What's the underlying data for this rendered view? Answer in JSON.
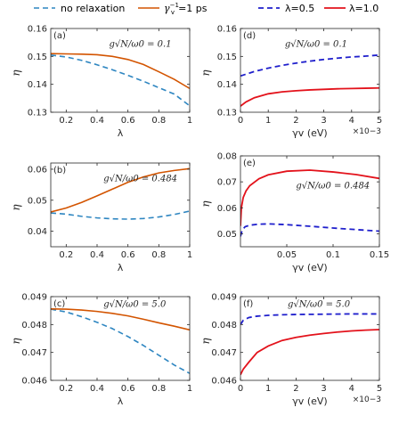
{
  "legends": {
    "left": [
      {
        "label": "no relaxation",
        "color": "#2e86c1",
        "dash": true
      },
      {
        "label": "γv−1=1 ps",
        "color": "#d35400",
        "dash": false
      }
    ],
    "right": [
      {
        "label": "λ=0.5",
        "color": "#1f1fcc",
        "dash": true
      },
      {
        "label": "λ=1.0",
        "color": "#e3121b",
        "dash": false
      }
    ]
  },
  "chart_data": [
    {
      "id": "a",
      "panel_label": "(a)",
      "type": "line",
      "annotation": "g√N/ω0 = 0.1",
      "xlabel": "λ",
      "ylabel": "η",
      "xlim": [
        0.1,
        1.0
      ],
      "ylim": [
        0.13,
        0.16
      ],
      "xticks": [
        0.2,
        0.4,
        0.6,
        0.8,
        1.0
      ],
      "xtick_labels": [
        "0.2",
        "0.4",
        "0.6",
        "0.8",
        "1"
      ],
      "yticks": [
        0.13,
        0.14,
        0.15,
        0.16
      ],
      "ytick_labels": [
        "0.13",
        "0.14",
        "0.15",
        "0.16"
      ],
      "series": [
        {
          "name": "no relaxation",
          "x": [
            0.1,
            0.2,
            0.3,
            0.4,
            0.5,
            0.6,
            0.7,
            0.8,
            0.9,
            1.0
          ],
          "y": [
            0.1505,
            0.1498,
            0.1486,
            0.147,
            0.1452,
            0.1432,
            0.1411,
            0.1388,
            0.1365,
            0.1323
          ]
        },
        {
          "name": "γv−1=1 ps",
          "x": [
            0.1,
            0.2,
            0.3,
            0.4,
            0.5,
            0.6,
            0.7,
            0.8,
            0.9,
            1.0
          ],
          "y": [
            0.151,
            0.1509,
            0.1508,
            0.1506,
            0.15,
            0.1489,
            0.1471,
            0.1445,
            0.1418,
            0.1385
          ]
        }
      ]
    },
    {
      "id": "d",
      "panel_label": "(d)",
      "type": "line",
      "annotation": "g√N/ω0 = 0.1",
      "xlabel": "γv (eV)",
      "x_multiplier": "×10−3",
      "ylabel": "η",
      "xlim": [
        0,
        5
      ],
      "ylim": [
        0.13,
        0.16
      ],
      "xticks": [
        0,
        1,
        2,
        3,
        4,
        5
      ],
      "xtick_labels": [
        "0",
        "1",
        "2",
        "3",
        "4",
        "5"
      ],
      "yticks": [
        0.13,
        0.14,
        0.15,
        0.16
      ],
      "ytick_labels": [
        "0.13",
        "0.14",
        "0.15",
        "0.16"
      ],
      "series": [
        {
          "name": "λ=0.5",
          "x": [
            0,
            0.5,
            1,
            1.5,
            2,
            2.5,
            3,
            3.5,
            4,
            4.5,
            5
          ],
          "y": [
            0.143,
            0.1446,
            0.1458,
            0.1468,
            0.1476,
            0.1483,
            0.1489,
            0.1494,
            0.1498,
            0.1501,
            0.1505
          ]
        },
        {
          "name": "λ=1.0",
          "x": [
            0,
            0.2,
            0.5,
            1,
            1.5,
            2,
            2.5,
            3,
            3.5,
            4,
            4.5,
            5
          ],
          "y": [
            0.1322,
            0.1337,
            0.1352,
            0.1366,
            0.1373,
            0.1377,
            0.138,
            0.1382,
            0.1384,
            0.1385,
            0.1386,
            0.1387
          ]
        }
      ]
    },
    {
      "id": "b",
      "panel_label": "(b)",
      "type": "line",
      "annotation": "g√N/ω0 = 0.484",
      "xlabel": "λ",
      "ylabel": "η",
      "xlim": [
        0.1,
        1.0
      ],
      "ylim": [
        0.035,
        0.062
      ],
      "xticks": [
        0.2,
        0.4,
        0.6,
        0.8,
        1.0
      ],
      "xtick_labels": [
        "0.2",
        "0.4",
        "0.6",
        "0.8",
        "1"
      ],
      "yticks": [
        0.04,
        0.05,
        0.06
      ],
      "ytick_labels": [
        "0.04",
        "0.05",
        "0.06"
      ],
      "series": [
        {
          "name": "no relaxation",
          "x": [
            0.1,
            0.2,
            0.3,
            0.4,
            0.5,
            0.6,
            0.7,
            0.8,
            0.9,
            1.0
          ],
          "y": [
            0.0459,
            0.0455,
            0.0448,
            0.0443,
            0.044,
            0.0439,
            0.0441,
            0.0446,
            0.0454,
            0.0465
          ]
        },
        {
          "name": "γv−1=1 ps",
          "x": [
            0.1,
            0.2,
            0.3,
            0.4,
            0.5,
            0.6,
            0.7,
            0.8,
            0.9,
            1.0
          ],
          "y": [
            0.0462,
            0.0475,
            0.0493,
            0.0514,
            0.0536,
            0.0558,
            0.0575,
            0.0588,
            0.0596,
            0.0602
          ]
        }
      ]
    },
    {
      "id": "e",
      "panel_label": "(e)",
      "type": "line",
      "annotation": "g√N/ω0 = 0.484",
      "xlabel": "γv (eV)",
      "ylabel": "η",
      "xlim": [
        0,
        0.15
      ],
      "ylim": [
        0.045,
        0.08
      ],
      "xticks": [
        0.05,
        0.1,
        0.15
      ],
      "xtick_labels": [
        "0.05",
        "0.1",
        "0.15"
      ],
      "yticks": [
        0.05,
        0.06,
        0.07,
        0.08
      ],
      "ytick_labels": [
        "0.05",
        "0.06",
        "0.07",
        "0.08"
      ],
      "series": [
        {
          "name": "λ=0.5",
          "x": [
            0,
            0.002,
            0.005,
            0.01,
            0.02,
            0.03,
            0.05,
            0.075,
            0.1,
            0.125,
            0.15
          ],
          "y": [
            0.049,
            0.0515,
            0.0527,
            0.0533,
            0.0537,
            0.0538,
            0.0535,
            0.0529,
            0.0522,
            0.0516,
            0.051
          ]
        },
        {
          "name": "λ=1.0",
          "x": [
            0,
            0.001,
            0.003,
            0.006,
            0.01,
            0.02,
            0.03,
            0.05,
            0.075,
            0.1,
            0.125,
            0.15
          ],
          "y": [
            0.053,
            0.06,
            0.064,
            0.0665,
            0.0685,
            0.0712,
            0.0727,
            0.0741,
            0.0745,
            0.0738,
            0.0728,
            0.0713
          ]
        }
      ]
    },
    {
      "id": "c",
      "panel_label": "(c)",
      "type": "line",
      "annotation": "g√N/ω0 = 5.0",
      "xlabel": "λ",
      "ylabel": "η",
      "xlim": [
        0.1,
        1.0
      ],
      "ylim": [
        0.046,
        0.049
      ],
      "xticks": [
        0.2,
        0.4,
        0.6,
        0.8,
        1.0
      ],
      "xtick_labels": [
        "0.2",
        "0.4",
        "0.6",
        "0.8",
        "1"
      ],
      "yticks": [
        0.046,
        0.047,
        0.048,
        0.049
      ],
      "ytick_labels": [
        "0.046",
        "0.047",
        "0.048",
        "0.049"
      ],
      "series": [
        {
          "name": "no relaxation",
          "x": [
            0.1,
            0.2,
            0.3,
            0.4,
            0.5,
            0.6,
            0.7,
            0.8,
            0.9,
            1.0
          ],
          "y": [
            0.04855,
            0.04845,
            0.04828,
            0.04808,
            0.04785,
            0.04757,
            0.04725,
            0.0469,
            0.04655,
            0.04625
          ]
        },
        {
          "name": "γv−1=1 ps",
          "x": [
            0.1,
            0.2,
            0.3,
            0.4,
            0.5,
            0.6,
            0.7,
            0.8,
            0.9,
            1.0
          ],
          "y": [
            0.04856,
            0.04855,
            0.04852,
            0.04847,
            0.0484,
            0.04831,
            0.04819,
            0.04806,
            0.04794,
            0.04781
          ]
        }
      ]
    },
    {
      "id": "f",
      "panel_label": "(f)",
      "type": "line",
      "annotation": "g√N/ω0 = 5.0",
      "xlabel": "γv (eV)",
      "x_multiplier": "×10−3",
      "ylabel": "η",
      "xlim": [
        0,
        5
      ],
      "ylim": [
        0.046,
        0.049
      ],
      "xticks": [
        0,
        1,
        2,
        3,
        4,
        5
      ],
      "xtick_labels": [
        "0",
        "1",
        "2",
        "3",
        "4",
        "5"
      ],
      "yticks": [
        0.046,
        0.047,
        0.048,
        0.049
      ],
      "ytick_labels": [
        "0.046",
        "0.047",
        "0.048",
        "0.049"
      ],
      "series": [
        {
          "name": "λ=0.5",
          "x": [
            0,
            0.1,
            0.3,
            0.6,
            1,
            1.5,
            2,
            3,
            4,
            5
          ],
          "y": [
            0.048,
            0.04815,
            0.04825,
            0.0483,
            0.04833,
            0.04835,
            0.04836,
            0.04837,
            0.04838,
            0.04838
          ]
        },
        {
          "name": "λ=1.0",
          "x": [
            0,
            0.1,
            0.3,
            0.6,
            1,
            1.5,
            2,
            2.5,
            3,
            3.5,
            4,
            4.5,
            5
          ],
          "y": [
            0.0462,
            0.0464,
            0.04665,
            0.047,
            0.04723,
            0.04743,
            0.04754,
            0.04762,
            0.04768,
            0.04773,
            0.04777,
            0.0478,
            0.04782
          ]
        }
      ]
    }
  ]
}
